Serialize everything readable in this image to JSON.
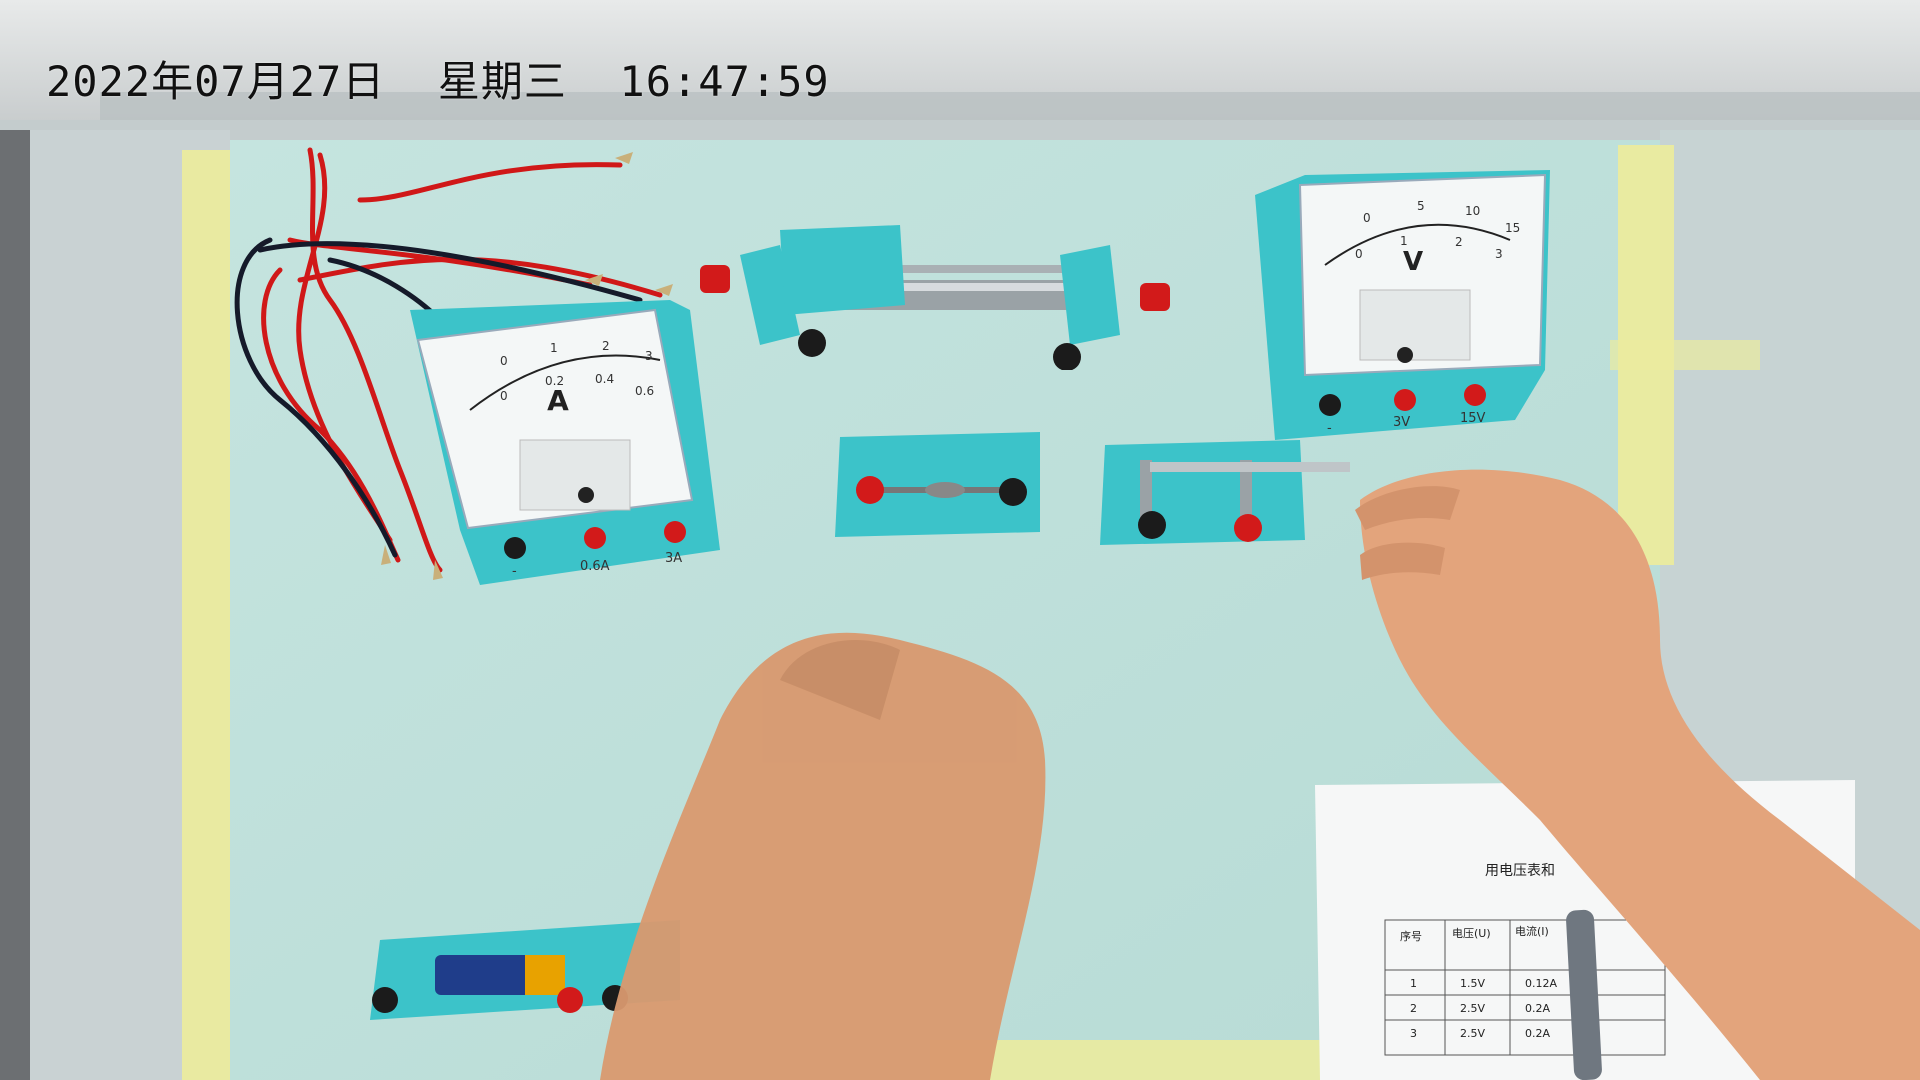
{
  "overlay": {
    "timestamp": "2022年07月27日  星期三  16:47:59"
  },
  "ammeter": {
    "unit_symbol": "A",
    "scale_top": [
      "0",
      "1",
      "2",
      "3"
    ],
    "scale_bottom": [
      "0",
      "0.2",
      "0.4",
      "0.6"
    ],
    "terminal_labels": [
      "-",
      "0.6A",
      "3A"
    ]
  },
  "voltmeter": {
    "unit_symbol": "V",
    "scale_top": [
      "0",
      "5",
      "10",
      "15"
    ],
    "scale_bottom": [
      "0",
      "1",
      "2",
      "3"
    ],
    "terminal_labels": [
      "-",
      "3V",
      "15V"
    ]
  },
  "worksheet": {
    "title": "用电压表和",
    "headers": [
      "序号",
      "电压(U)",
      "电流(I)"
    ],
    "rows": [
      [
        "1",
        "1.5V",
        "0.12A"
      ],
      [
        "2",
        "2.5V",
        "0.2A"
      ],
      [
        "3",
        "2.5V",
        "0.2A"
      ]
    ]
  },
  "colors": {
    "board": "#bfe0db",
    "tape": "#ecec9c",
    "equipment": "#3cc3c9",
    "terminal_red": "#d21a1a",
    "terminal_black": "#1b1b1b",
    "wire_red": "#d01818",
    "wire_black": "#151a2a",
    "skin": "#e3a47c"
  }
}
